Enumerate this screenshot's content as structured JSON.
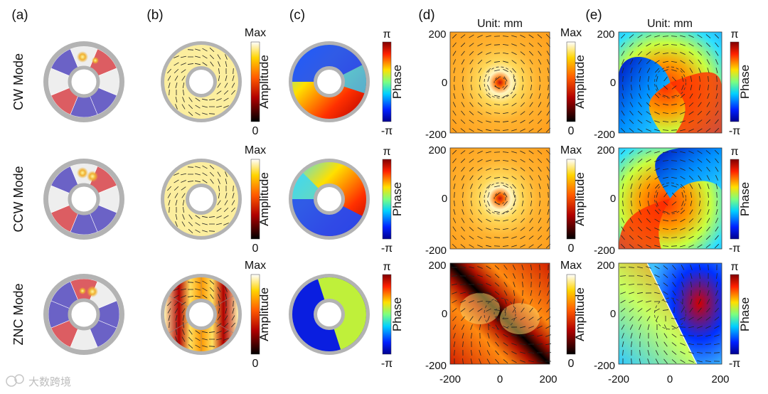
{
  "panel_labels": {
    "a": "(a)",
    "b": "(b)",
    "c": "(c)",
    "d": "(d)",
    "e": "(e)"
  },
  "row_labels": [
    "CW Mode",
    "CCW Mode",
    "ZNC Mode"
  ],
  "amplitude_bar": {
    "top": "Max",
    "title": "Amplitude",
    "bottom": "0"
  },
  "phase_bar": {
    "top": "π",
    "title": "Phase",
    "bottom": "-π"
  },
  "unit_label": "Unit: mm",
  "map_ticks": {
    "y": [
      "200",
      "0",
      "-200"
    ],
    "x": [
      "-200",
      "0",
      "200"
    ]
  },
  "watermark": "大数跨境",
  "colors": {
    "ring_gray": "#b3b3b3",
    "cell_blue": "#6b62c6",
    "cell_red": "#dc5d62",
    "cell_white": "#eeeeee",
    "amp_field": "#fcee9e",
    "phase_green": "#bff03a",
    "phase_blue": "#0a1ee0"
  }
}
